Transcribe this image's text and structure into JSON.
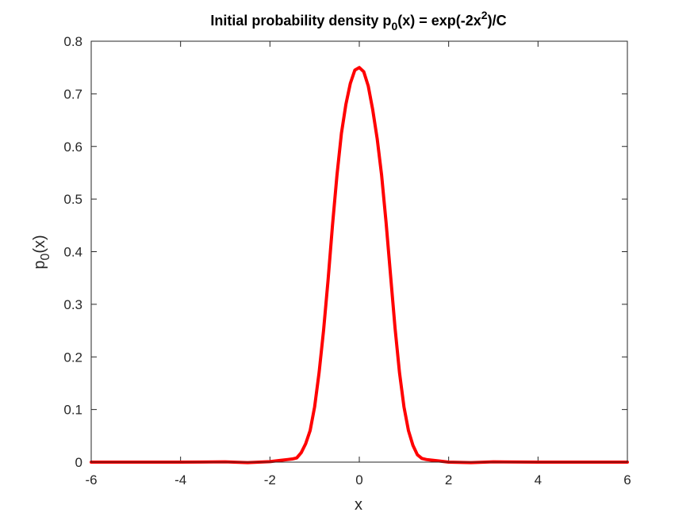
{
  "chart_data": {
    "type": "line",
    "title": {
      "prefix": "Initial probability density p",
      "subscript": "0",
      "middle": "(x) = exp(-2x",
      "superscript": "2",
      "suffix": ")/C"
    },
    "xlabel": "x",
    "ylabel": {
      "base": "p",
      "subscript": "0",
      "suffix": "(x)"
    },
    "xlim": [
      -6,
      6
    ],
    "ylim": [
      0,
      0.8
    ],
    "xticks": [
      -6,
      -4,
      -2,
      0,
      2,
      4,
      6
    ],
    "xtick_labels": [
      "-6",
      "-4",
      "-2",
      "0",
      "2",
      "4",
      "6"
    ],
    "yticks": [
      0,
      0.1,
      0.2,
      0.3,
      0.4,
      0.5,
      0.6,
      0.7,
      0.8
    ],
    "ytick_labels": [
      "0",
      "0.1",
      "0.2",
      "0.3",
      "0.4",
      "0.5",
      "0.6",
      "0.7",
      "0.8"
    ],
    "grid": false,
    "line_color": "#ff0000",
    "series": [
      {
        "x": [
          -6,
          -5,
          -4,
          -3,
          -2.5,
          -2,
          -1.8,
          -1.6,
          -1.5,
          -1.4,
          -1.3,
          -1.2,
          -1.1,
          -1.0,
          -0.9,
          -0.8,
          -0.7,
          -0.6,
          -0.5,
          -0.4,
          -0.3,
          -0.2,
          -0.1,
          0,
          0.1,
          0.2,
          0.3,
          0.4,
          0.5,
          0.6,
          0.7,
          0.8,
          0.9,
          1.0,
          1.1,
          1.2,
          1.3,
          1.4,
          1.5,
          1.6,
          1.8,
          2.0,
          2.5,
          3.0,
          4.0,
          5.0,
          6.0
        ],
        "values": [
          0,
          0,
          0,
          0.0005,
          -0.001,
          0.001,
          0.003,
          0.005,
          0.006,
          0.008,
          0.018,
          0.035,
          0.06,
          0.105,
          0.17,
          0.25,
          0.345,
          0.45,
          0.545,
          0.625,
          0.68,
          0.72,
          0.745,
          0.75,
          0.742,
          0.715,
          0.67,
          0.615,
          0.545,
          0.455,
          0.355,
          0.255,
          0.17,
          0.105,
          0.06,
          0.032,
          0.014,
          0.007,
          0.005,
          0.004,
          0.002,
          0.0,
          -0.001,
          0.0005,
          0,
          0,
          0
        ]
      }
    ]
  }
}
